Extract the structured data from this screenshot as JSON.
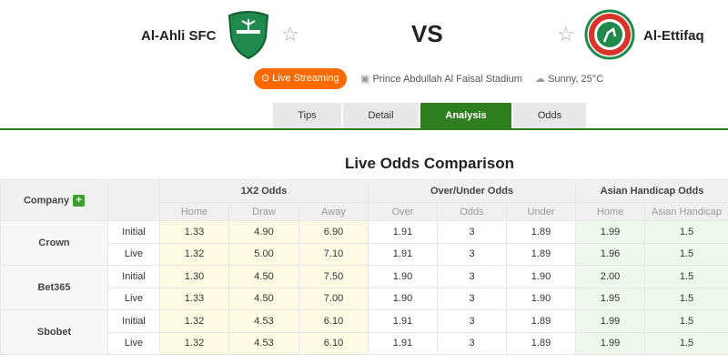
{
  "match": {
    "home": "Al-Ahli SFC",
    "away": "Al-Ettifaq",
    "vs": "VS",
    "live_label": "Live Streaming",
    "stadium": "Prince Abdullah Al Faisal Stadium",
    "weather": "Sunny, 25°C"
  },
  "tabs": [
    {
      "label": "Tips"
    },
    {
      "label": "Detail"
    },
    {
      "label": "Analysis",
      "active": true
    },
    {
      "label": "Odds"
    }
  ],
  "section_title": "Live Odds Comparison",
  "table": {
    "company_header": "Company",
    "groups": [
      "1X2 Odds",
      "Over/Under Odds",
      "Asian Handicap Odds"
    ],
    "subheaders": [
      "Home",
      "Draw",
      "Away",
      "Over",
      "Odds",
      "Under",
      "Home",
      "Asian Handicap"
    ],
    "companies": [
      {
        "name": "Crown",
        "rows": [
          {
            "type": "Initial",
            "v": [
              "1.33",
              "4.90",
              "6.90",
              "1.91",
              "3",
              "1.89",
              "1.99",
              "1.5"
            ]
          },
          {
            "type": "Live",
            "v": [
              "1.32",
              "5.00",
              "7.10",
              "1.91",
              "3",
              "1.89",
              "1.96",
              "1.5"
            ]
          }
        ]
      },
      {
        "name": "Bet365",
        "rows": [
          {
            "type": "Initial",
            "v": [
              "1.30",
              "4.50",
              "7.50",
              "1.90",
              "3",
              "1.90",
              "2.00",
              "1.5"
            ]
          },
          {
            "type": "Live",
            "v": [
              "1.33",
              "4.50",
              "7.00",
              "1.90",
              "3",
              "1.90",
              "1.95",
              "1.5"
            ]
          }
        ]
      },
      {
        "name": "Sbobet",
        "rows": [
          {
            "type": "Initial",
            "v": [
              "1.32",
              "4.53",
              "6.10",
              "1.91",
              "3",
              "1.89",
              "1.99",
              "1.5"
            ]
          },
          {
            "type": "Live",
            "v": [
              "1.32",
              "4.53",
              "6.10",
              "1.91",
              "3",
              "1.89",
              "1.99",
              "1.5"
            ]
          }
        ]
      }
    ]
  },
  "colors": {
    "accent": "#2e7d1e",
    "live": "#ff6a00"
  }
}
